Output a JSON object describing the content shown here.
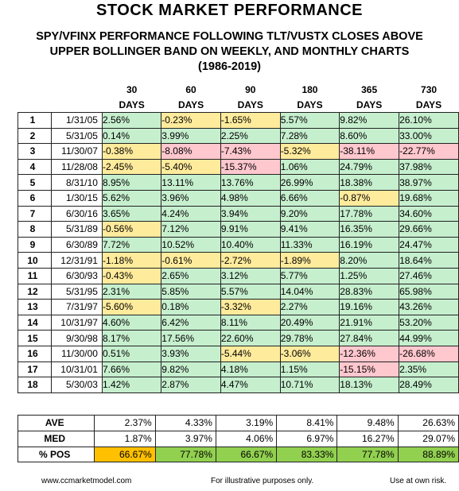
{
  "title": "STOCK MARKET PERFORMANCE",
  "subtitle": {
    "line1": "SPY/VFINX PERFORMANCE FOLLOWING TLT/VUSTX CLOSES ABOVE",
    "line2": "UPPER BOLLINGER BAND ON WEEKLY, AND MONTHLY CHARTS",
    "line3": "(1986-2019)"
  },
  "columns": [
    {
      "num": "30",
      "unit": "DAYS"
    },
    {
      "num": "60",
      "unit": "DAYS"
    },
    {
      "num": "90",
      "unit": "DAYS"
    },
    {
      "num": "180",
      "unit": "DAYS"
    },
    {
      "num": "365",
      "unit": "DAYS"
    },
    {
      "num": "730",
      "unit": "DAYS"
    }
  ],
  "rows": [
    {
      "idx": "1",
      "date": "1/31/05",
      "values": [
        "2.56%",
        "-0.23%",
        "-1.65%",
        "5.57%",
        "9.82%",
        "26.10%"
      ],
      "colors": [
        "g",
        "y",
        "y",
        "g",
        "g",
        "g"
      ]
    },
    {
      "idx": "2",
      "date": "5/31/05",
      "values": [
        "0.14%",
        "3.99%",
        "2.25%",
        "7.28%",
        "8.60%",
        "33.00%"
      ],
      "colors": [
        "g",
        "g",
        "g",
        "g",
        "g",
        "g"
      ]
    },
    {
      "idx": "3",
      "date": "11/30/07",
      "values": [
        "-0.38%",
        "-8.08%",
        "-7.43%",
        "-5.32%",
        "-38.11%",
        "-22.77%"
      ],
      "colors": [
        "y",
        "r",
        "r",
        "y",
        "r",
        "r"
      ]
    },
    {
      "idx": "4",
      "date": "11/28/08",
      "values": [
        "-2.45%",
        "-5.40%",
        "-15.37%",
        "1.06%",
        "24.79%",
        "37.98%"
      ],
      "colors": [
        "y",
        "y",
        "r",
        "g",
        "g",
        "g"
      ]
    },
    {
      "idx": "5",
      "date": "8/31/10",
      "values": [
        "8.95%",
        "13.11%",
        "13.76%",
        "26.99%",
        "18.38%",
        "38.97%"
      ],
      "colors": [
        "g",
        "g",
        "g",
        "g",
        "g",
        "g"
      ]
    },
    {
      "idx": "6",
      "date": "1/30/15",
      "values": [
        "5.62%",
        "3.96%",
        "4.98%",
        "6.66%",
        "-0.87%",
        "19.68%"
      ],
      "colors": [
        "g",
        "g",
        "g",
        "g",
        "y",
        "g"
      ]
    },
    {
      "idx": "7",
      "date": "6/30/16",
      "values": [
        "3.65%",
        "4.24%",
        "3.94%",
        "9.20%",
        "17.78%",
        "34.60%"
      ],
      "colors": [
        "g",
        "g",
        "g",
        "g",
        "g",
        "g"
      ]
    },
    {
      "idx": "8",
      "date": "5/31/89",
      "values": [
        "-0.56%",
        "7.12%",
        "9.91%",
        "9.41%",
        "16.35%",
        "29.66%"
      ],
      "colors": [
        "y",
        "g",
        "g",
        "g",
        "g",
        "g"
      ]
    },
    {
      "idx": "9",
      "date": "6/30/89",
      "values": [
        "7.72%",
        "10.52%",
        "10.40%",
        "11.33%",
        "16.19%",
        "24.47%"
      ],
      "colors": [
        "g",
        "g",
        "g",
        "g",
        "g",
        "g"
      ]
    },
    {
      "idx": "10",
      "date": "12/31/91",
      "values": [
        "-1.18%",
        "-0.61%",
        "-2.72%",
        "-1.89%",
        "8.20%",
        "18.64%"
      ],
      "colors": [
        "y",
        "y",
        "y",
        "y",
        "g",
        "g"
      ]
    },
    {
      "idx": "11",
      "date": "6/30/93",
      "values": [
        "-0.43%",
        "2.65%",
        "3.12%",
        "5.77%",
        "1.25%",
        "27.46%"
      ],
      "colors": [
        "y",
        "g",
        "g",
        "g",
        "g",
        "g"
      ]
    },
    {
      "idx": "12",
      "date": "5/31/95",
      "values": [
        "2.31%",
        "5.85%",
        "5.57%",
        "14.04%",
        "28.83%",
        "65.98%"
      ],
      "colors": [
        "g",
        "g",
        "g",
        "g",
        "g",
        "g"
      ]
    },
    {
      "idx": "13",
      "date": "7/31/97",
      "values": [
        "-5.60%",
        "0.18%",
        "-3.32%",
        "2.27%",
        "19.16%",
        "43.26%"
      ],
      "colors": [
        "y",
        "g",
        "y",
        "g",
        "g",
        "g"
      ]
    },
    {
      "idx": "14",
      "date": "10/31/97",
      "values": [
        "4.60%",
        "6.42%",
        "8.11%",
        "20.49%",
        "21.91%",
        "53.20%"
      ],
      "colors": [
        "g",
        "g",
        "g",
        "g",
        "g",
        "g"
      ]
    },
    {
      "idx": "15",
      "date": "9/30/98",
      "values": [
        "8.17%",
        "17.56%",
        "22.60%",
        "29.78%",
        "27.84%",
        "44.99%"
      ],
      "colors": [
        "g",
        "g",
        "g",
        "g",
        "g",
        "g"
      ]
    },
    {
      "idx": "16",
      "date": "11/30/00",
      "values": [
        "0.51%",
        "3.93%",
        "-5.44%",
        "-3.06%",
        "-12.36%",
        "-26.68%"
      ],
      "colors": [
        "g",
        "g",
        "y",
        "y",
        "r",
        "r"
      ]
    },
    {
      "idx": "17",
      "date": "10/31/01",
      "values": [
        "7.66%",
        "9.82%",
        "4.18%",
        "1.15%",
        "-15.15%",
        "2.35%"
      ],
      "colors": [
        "g",
        "g",
        "g",
        "g",
        "r",
        "g"
      ]
    },
    {
      "idx": "18",
      "date": "5/30/03",
      "values": [
        "1.42%",
        "2.87%",
        "4.47%",
        "10.71%",
        "18.13%",
        "28.49%"
      ],
      "colors": [
        "g",
        "g",
        "g",
        "g",
        "g",
        "g"
      ]
    }
  ],
  "summary": [
    {
      "label": "AVE",
      "values": [
        "2.37%",
        "4.33%",
        "3.19%",
        "8.41%",
        "9.48%",
        "26.63%"
      ],
      "colors": [
        "w",
        "w",
        "w",
        "w",
        "w",
        "w"
      ]
    },
    {
      "label": "MED",
      "values": [
        "1.87%",
        "3.97%",
        "4.06%",
        "6.97%",
        "16.27%",
        "29.07%"
      ],
      "colors": [
        "w",
        "w",
        "w",
        "w",
        "w",
        "w"
      ]
    },
    {
      "label": "% POS",
      "values": [
        "66.67%",
        "77.78%",
        "66.67%",
        "83.33%",
        "77.78%",
        "88.89%"
      ],
      "colors": [
        "pos-orange",
        "pos-green",
        "pos-green",
        "pos-green",
        "pos-green",
        "pos-green"
      ]
    }
  ],
  "footer": {
    "website": "www.ccmarketmodel.com",
    "disclaimer": "For illustrative purposes only.",
    "risk": "Use at own risk."
  },
  "palette": {
    "green": "#c6efce",
    "yellow": "#ffeb9c",
    "red": "#ffc7ce",
    "orange": "#ffc000",
    "bright_green": "#92d050"
  }
}
